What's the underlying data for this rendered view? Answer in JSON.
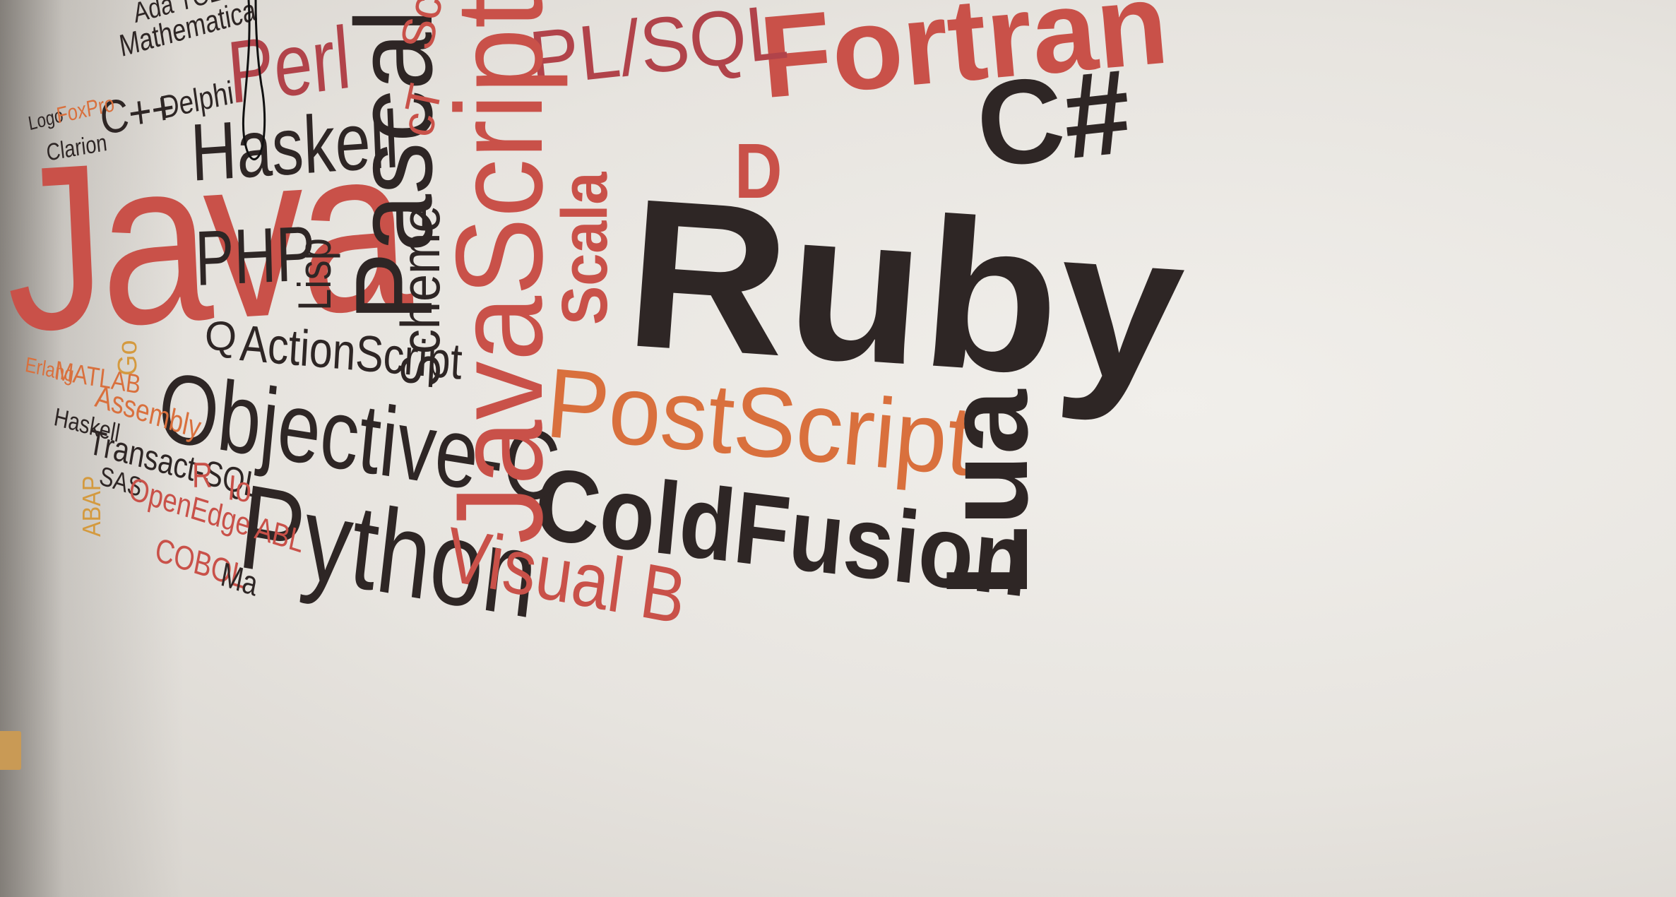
{
  "words": {
    "java": "Java",
    "javascript": "JavaScript",
    "ruby": "Ruby",
    "fortran": "Fortran",
    "csharp": "C#",
    "plsql": "PL/SQL",
    "perl": "Perl",
    "pascal": "Pascal",
    "haskell": "Haskell",
    "php": "PHP",
    "lisp": "Lisp",
    "scheme": "Scheme",
    "scala": "Scala",
    "d": "D",
    "postscript": "PostScript",
    "coldfusion": "ColdFusion",
    "lua": "Lua",
    "objective_c": "Objective-C",
    "python": "Python",
    "actionscript": "ActionScript",
    "q": "Q",
    "go": "Go",
    "erlang": "Erlang",
    "matlab": "MATLAB",
    "assembly": "Assembly",
    "haskell_small": "Haskell",
    "transact_sql": "Transact-SQL",
    "abap": "ABAP",
    "sas": "SAS",
    "openedge_abl": "OpenEdge ABL",
    "r": "R",
    "io": "Io",
    "cobol": "COBOL",
    "maple_partial": "Ma",
    "visual_partial": "Visual B",
    "ct": "cT",
    "s_partial": "Sc",
    "ada_tcl": "Ada TCL",
    "mathematica": "Mathematica",
    "cpp": "C++",
    "delphi": "Delphi",
    "logo": "Logo",
    "foxpro": "FoxPro",
    "clarion": "Clarion"
  },
  "colors": {
    "dark": "#2e2625",
    "red": "#c95149",
    "crimson": "#b1434a",
    "orange": "#d9703d",
    "gold": "#d49a3f"
  }
}
